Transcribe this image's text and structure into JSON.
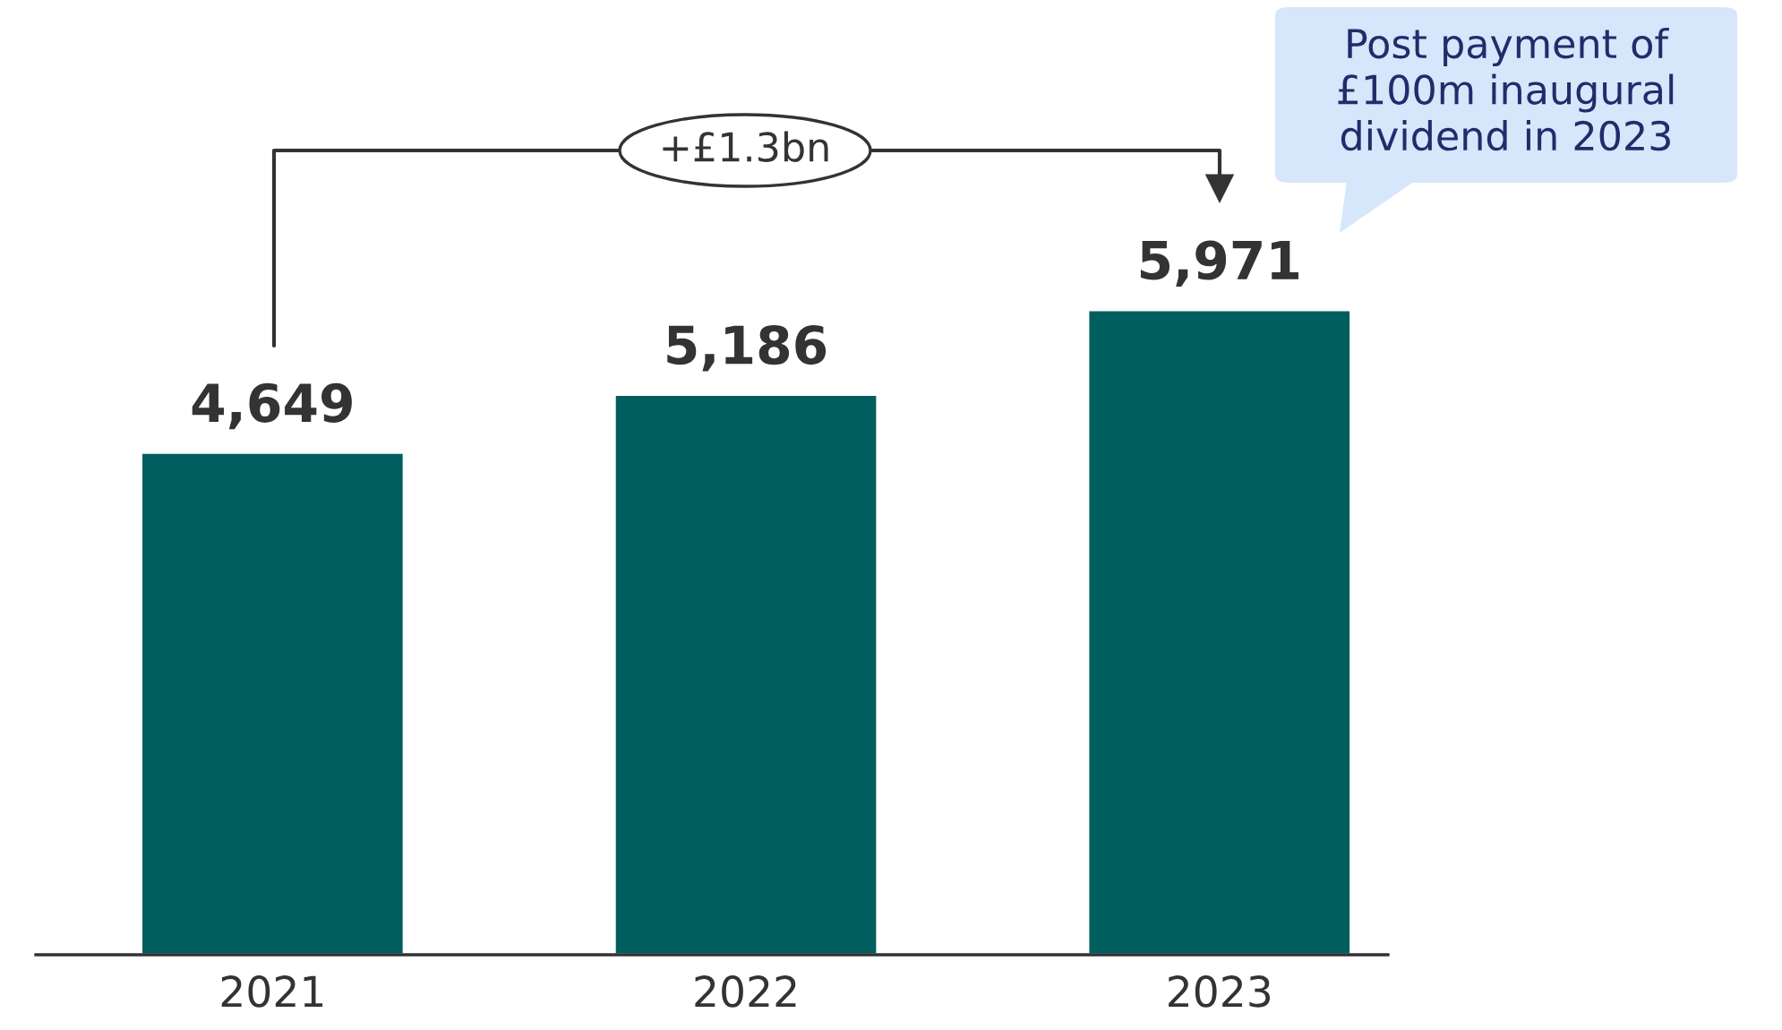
{
  "chart_data": {
    "type": "bar",
    "categories": [
      "2021",
      "2022",
      "2023"
    ],
    "values": [
      4649,
      5186,
      5971
    ],
    "value_labels": [
      "4,649",
      "5,186",
      "5,971"
    ],
    "color": "#005e5e",
    "annotations": [
      "+£1.3bn",
      "Post payment of\n£100m inaugural\ndividend in 2023"
    ]
  }
}
